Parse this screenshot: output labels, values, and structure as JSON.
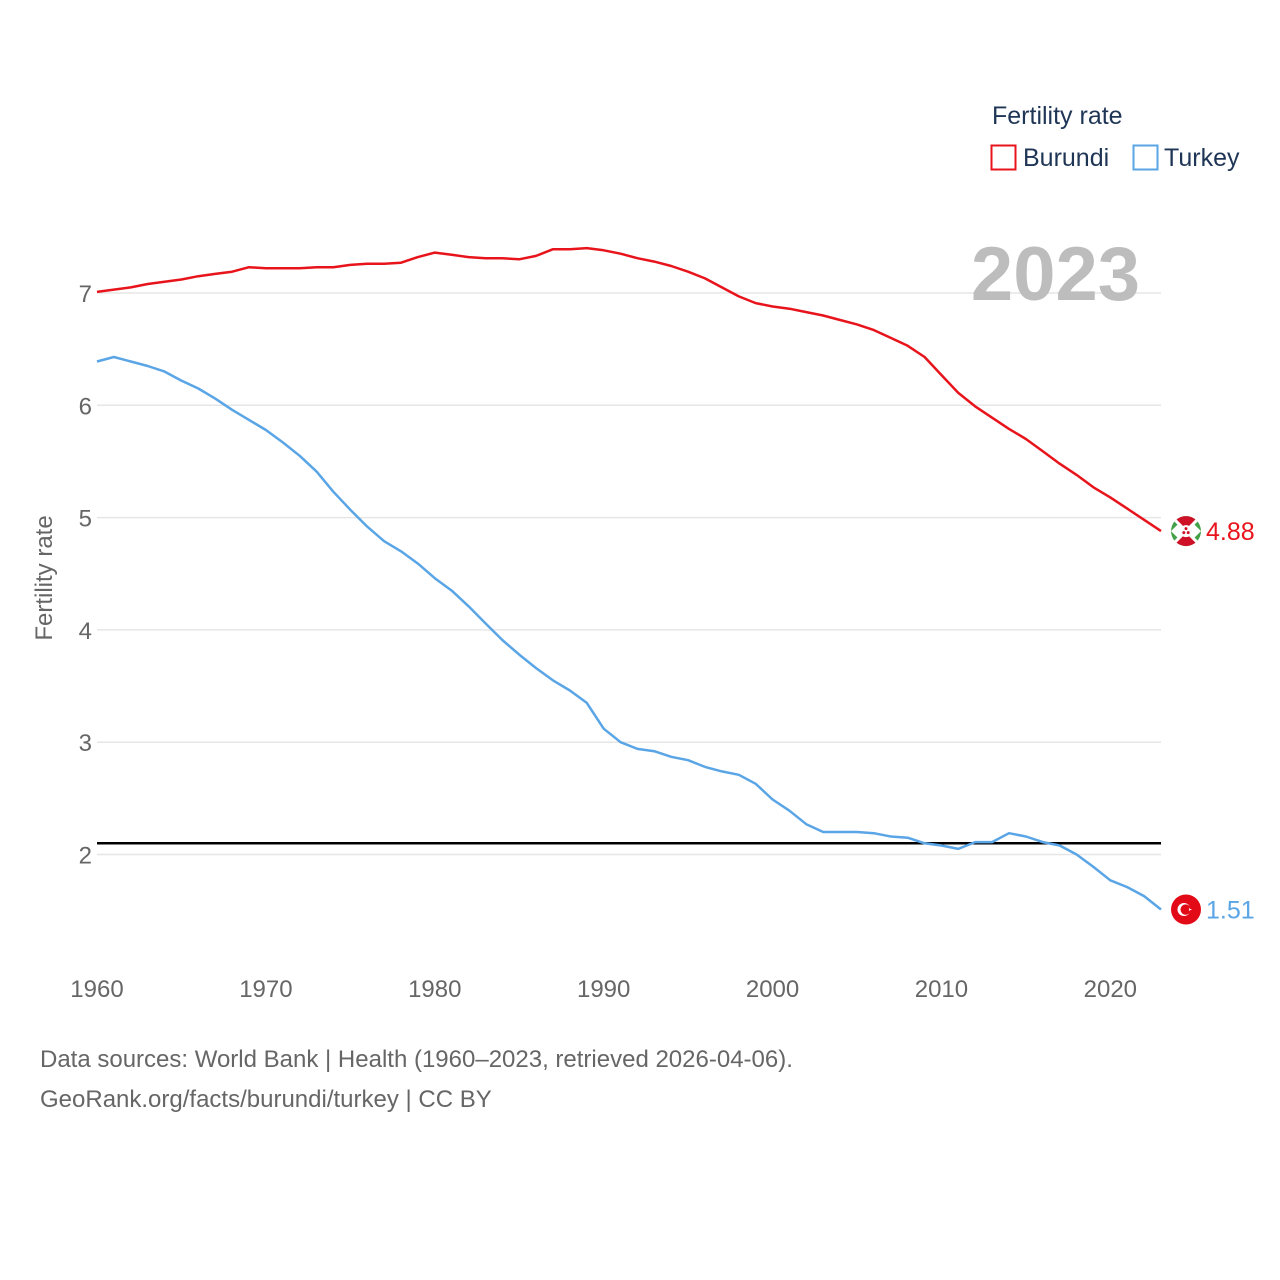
{
  "chart_data": {
    "type": "line",
    "title": "",
    "xlabel": "",
    "ylabel": "Fertility rate",
    "xlim": [
      1960,
      2023
    ],
    "ylim": [
      1,
      7.6
    ],
    "yticks": [
      2,
      3,
      4,
      5,
      6,
      7
    ],
    "xticks": [
      1960,
      1970,
      1980,
      1990,
      2000,
      2010,
      2020
    ],
    "year_label": "2023",
    "reference_line": 2.1,
    "legend": {
      "title": "Fertility rate",
      "position": "top-right"
    },
    "x": [
      1960,
      1961,
      1962,
      1963,
      1964,
      1965,
      1966,
      1967,
      1968,
      1969,
      1970,
      1971,
      1972,
      1973,
      1974,
      1975,
      1976,
      1977,
      1978,
      1979,
      1980,
      1981,
      1982,
      1983,
      1984,
      1985,
      1986,
      1987,
      1988,
      1989,
      1990,
      1991,
      1992,
      1993,
      1994,
      1995,
      1996,
      1997,
      1998,
      1999,
      2000,
      2001,
      2002,
      2003,
      2004,
      2005,
      2006,
      2007,
      2008,
      2009,
      2010,
      2011,
      2012,
      2013,
      2014,
      2015,
      2016,
      2017,
      2018,
      2019,
      2020,
      2021,
      2022,
      2023
    ],
    "series": [
      {
        "name": "Burundi",
        "color": "#e8141c",
        "end_label": "4.88",
        "flag": "burundi-flag",
        "values": [
          7.01,
          7.03,
          7.05,
          7.08,
          7.1,
          7.12,
          7.15,
          7.17,
          7.19,
          7.23,
          7.22,
          7.22,
          7.22,
          7.23,
          7.23,
          7.25,
          7.26,
          7.26,
          7.27,
          7.32,
          7.36,
          7.34,
          7.32,
          7.31,
          7.31,
          7.3,
          7.33,
          7.39,
          7.39,
          7.4,
          7.38,
          7.35,
          7.31,
          7.28,
          7.24,
          7.19,
          7.13,
          7.05,
          6.97,
          6.91,
          6.88,
          6.86,
          6.83,
          6.8,
          6.76,
          6.72,
          6.67,
          6.6,
          6.53,
          6.43,
          6.27,
          6.11,
          5.99,
          5.89,
          5.79,
          5.7,
          5.59,
          5.48,
          5.38,
          5.27,
          5.18,
          5.08,
          4.98,
          4.88
        ]
      },
      {
        "name": "Turkey",
        "color": "#5aa5e6",
        "end_label": "1.51",
        "flag": "turkey-flag",
        "values": [
          6.39,
          6.43,
          6.39,
          6.35,
          6.3,
          6.22,
          6.15,
          6.06,
          5.96,
          5.87,
          5.78,
          5.67,
          5.55,
          5.41,
          5.23,
          5.07,
          4.92,
          4.79,
          4.7,
          4.59,
          4.46,
          4.35,
          4.21,
          4.06,
          3.91,
          3.78,
          3.66,
          3.55,
          3.46,
          3.35,
          3.12,
          3.0,
          2.94,
          2.92,
          2.87,
          2.84,
          2.78,
          2.74,
          2.71,
          2.63,
          2.49,
          2.39,
          2.27,
          2.2,
          2.2,
          2.2,
          2.19,
          2.16,
          2.15,
          2.1,
          2.08,
          2.05,
          2.11,
          2.11,
          2.19,
          2.16,
          2.11,
          2.08,
          2.0,
          1.89,
          1.77,
          1.71,
          1.63,
          1.51
        ]
      }
    ]
  },
  "footer": {
    "source_line": "Data sources: World Bank | Health (1960–2023, retrieved 2026-04-06).",
    "url_line": "GeoRank.org/facts/burundi/turkey | CC BY"
  }
}
